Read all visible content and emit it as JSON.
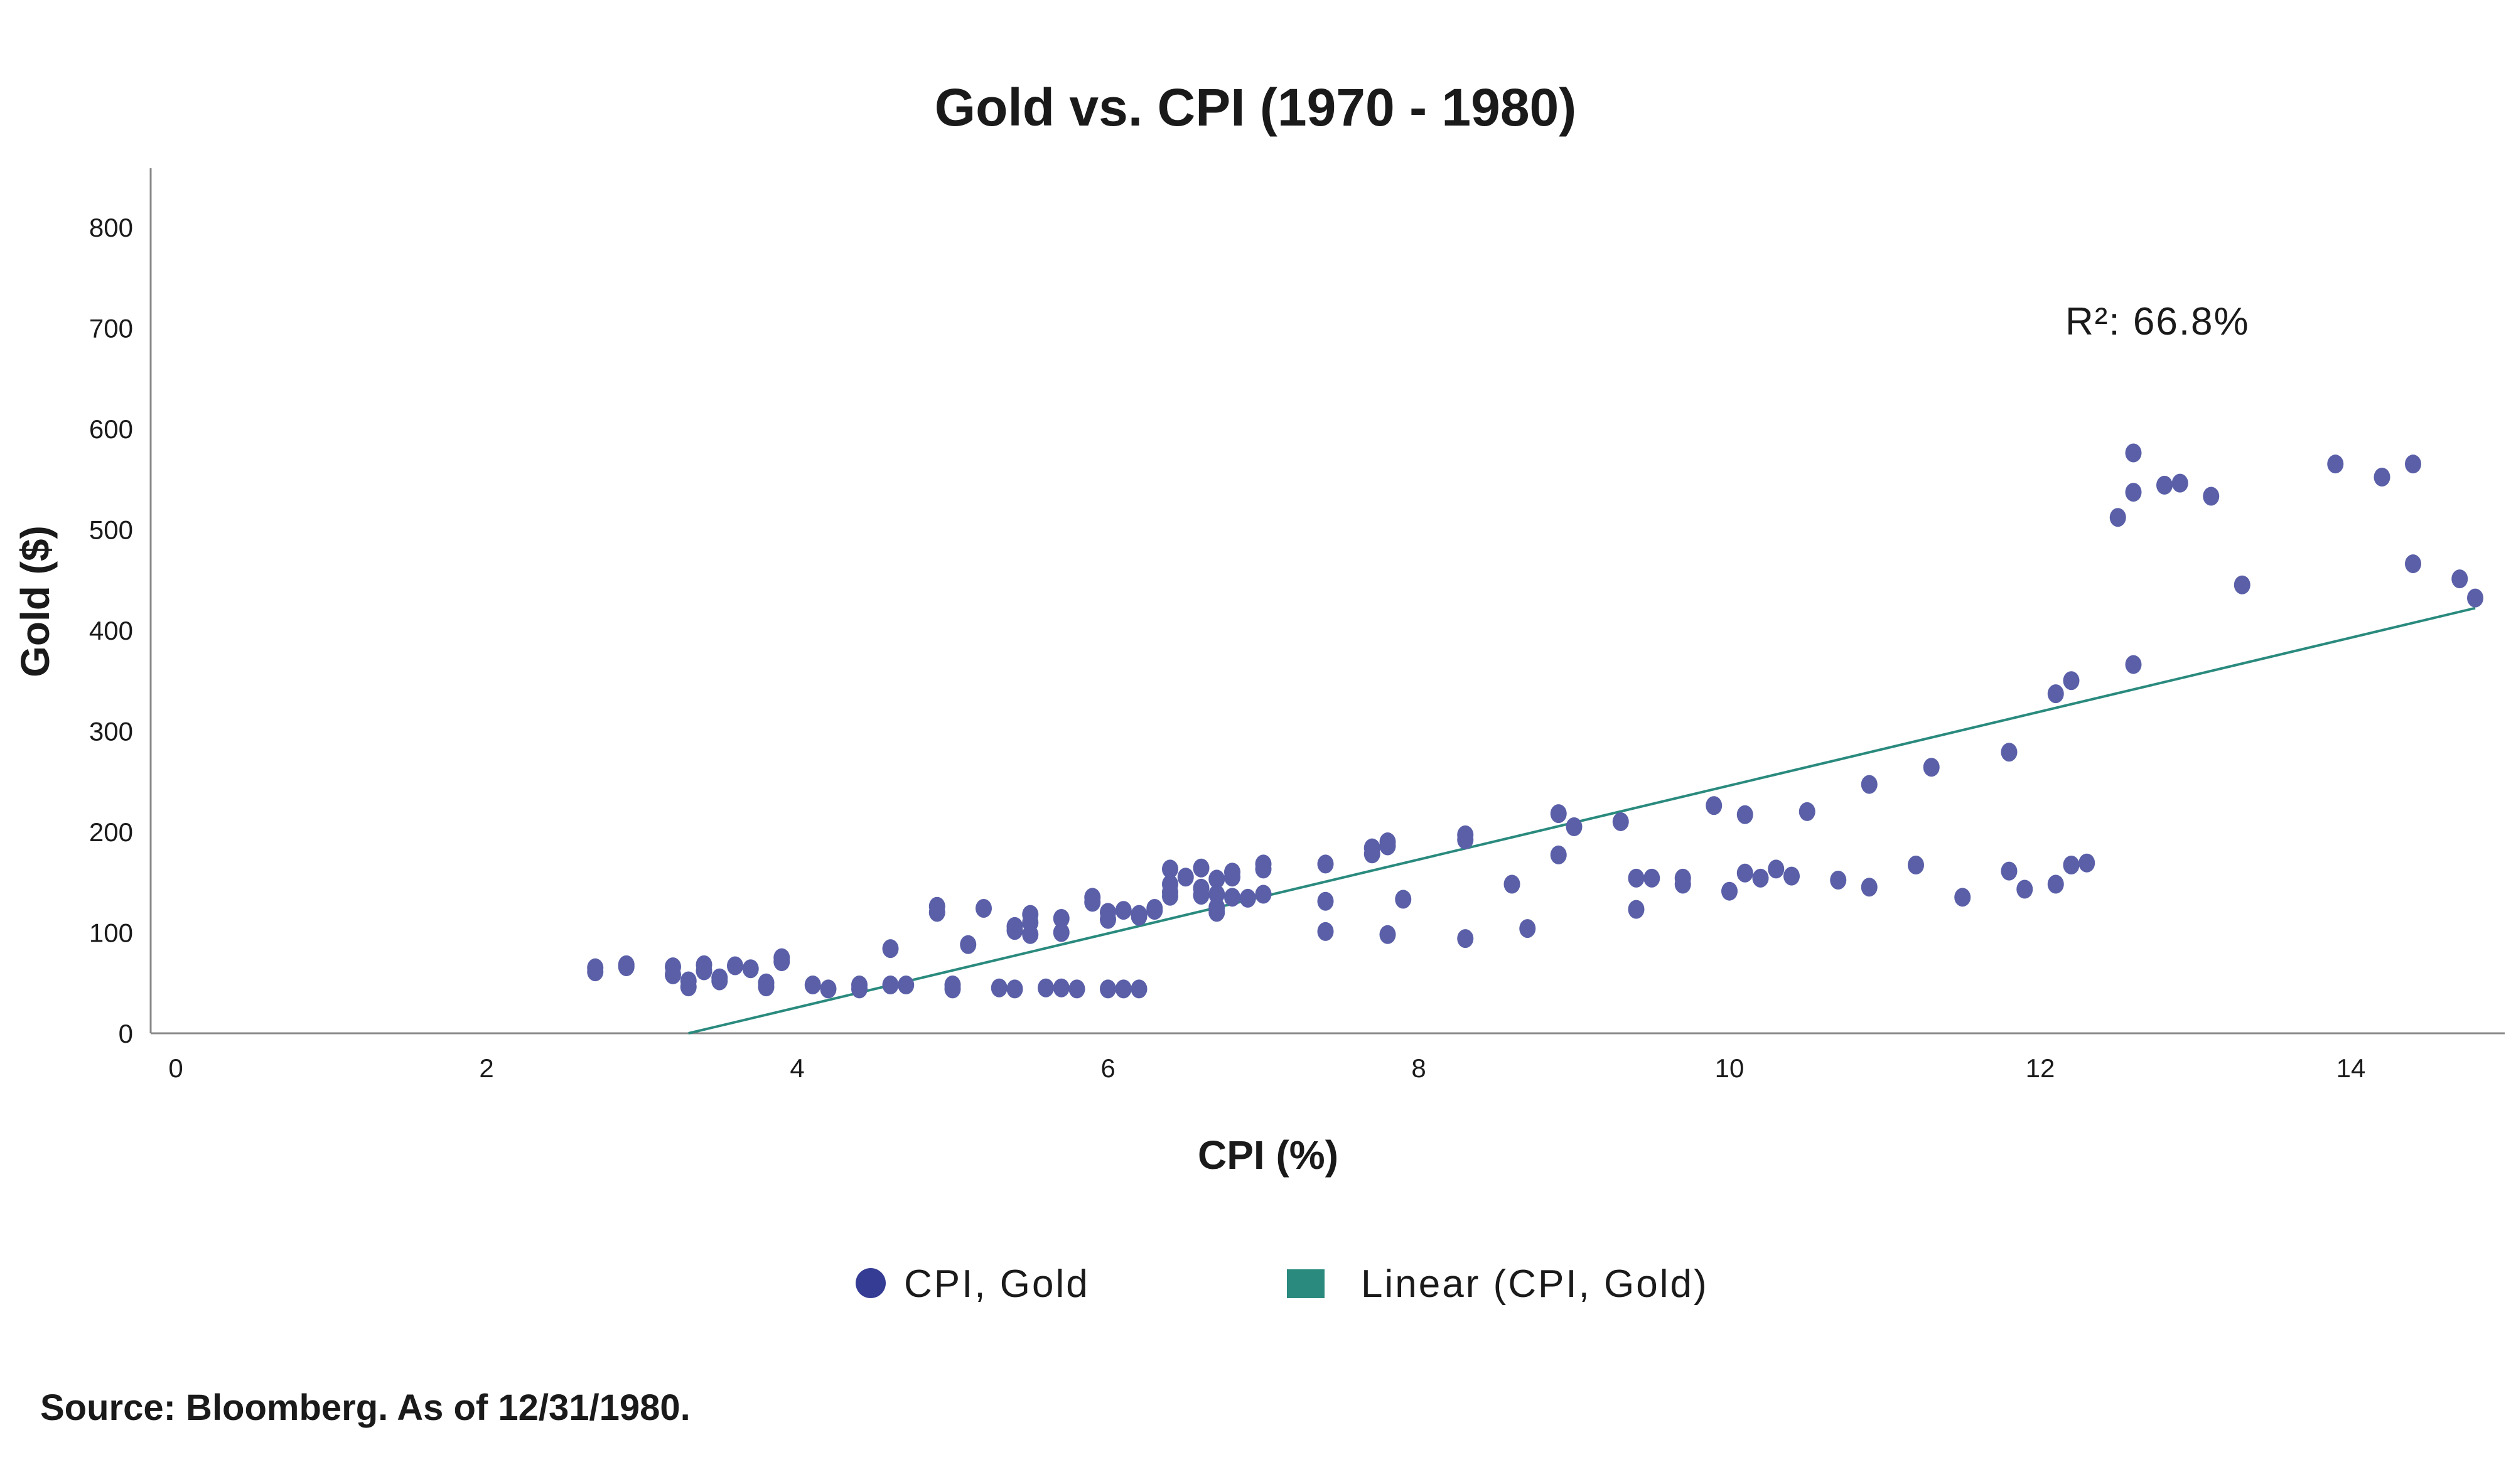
{
  "chart_data": {
    "type": "scatter",
    "title": "Gold vs. CPI (1970 - 1980)",
    "xlabel": "CPI (%)",
    "ylabel": "Gold ($)",
    "xlim": [
      0,
      15
    ],
    "ylim": [
      0,
      860
    ],
    "xticks": [
      0,
      2,
      4,
      6,
      8,
      10,
      12,
      14
    ],
    "yticks": [
      0,
      100,
      200,
      300,
      400,
      500,
      600,
      700,
      800
    ],
    "grid": false,
    "legend_position": "bottom",
    "colors": {
      "points": "#5a5fa8",
      "trendline": "#2a8a7e",
      "legend_marker": "#353c94",
      "axis": "#888888"
    },
    "series": [
      {
        "name": "CPI, Gold",
        "marker": "circle",
        "points": [
          [
            2.7,
            65
          ],
          [
            2.7,
            61
          ],
          [
            2.9,
            68
          ],
          [
            2.9,
            66
          ],
          [
            3.2,
            66
          ],
          [
            3.2,
            58
          ],
          [
            3.3,
            52
          ],
          [
            3.3,
            46
          ],
          [
            3.4,
            68
          ],
          [
            3.4,
            62
          ],
          [
            3.5,
            55
          ],
          [
            3.5,
            52
          ],
          [
            3.6,
            67
          ],
          [
            3.7,
            64
          ],
          [
            3.8,
            50
          ],
          [
            3.8,
            46
          ],
          [
            3.9,
            75
          ],
          [
            3.9,
            71
          ],
          [
            4.1,
            48
          ],
          [
            4.2,
            44
          ],
          [
            4.4,
            48
          ],
          [
            4.4,
            44
          ],
          [
            4.6,
            84
          ],
          [
            4.6,
            48
          ],
          [
            4.7,
            48
          ],
          [
            4.9,
            126
          ],
          [
            4.9,
            120
          ],
          [
            5.0,
            48
          ],
          [
            5.0,
            44
          ],
          [
            5.1,
            88
          ],
          [
            5.2,
            124
          ],
          [
            5.3,
            45
          ],
          [
            5.4,
            106
          ],
          [
            5.4,
            102
          ],
          [
            5.4,
            44
          ],
          [
            5.5,
            118
          ],
          [
            5.5,
            110
          ],
          [
            5.5,
            98
          ],
          [
            5.6,
            45
          ],
          [
            5.7,
            114
          ],
          [
            5.7,
            100
          ],
          [
            5.7,
            45
          ],
          [
            5.8,
            44
          ],
          [
            5.9,
            135
          ],
          [
            5.9,
            130
          ],
          [
            6.0,
            120
          ],
          [
            6.0,
            113
          ],
          [
            6.0,
            44
          ],
          [
            6.1,
            122
          ],
          [
            6.1,
            44
          ],
          [
            6.2,
            118
          ],
          [
            6.2,
            116
          ],
          [
            6.2,
            44
          ],
          [
            6.3,
            124
          ],
          [
            6.3,
            122
          ],
          [
            6.4,
            163
          ],
          [
            6.4,
            148
          ],
          [
            6.4,
            140
          ],
          [
            6.4,
            136
          ],
          [
            6.5,
            155
          ],
          [
            6.6,
            164
          ],
          [
            6.6,
            144
          ],
          [
            6.6,
            137
          ],
          [
            6.7,
            153
          ],
          [
            6.7,
            138
          ],
          [
            6.7,
            125
          ],
          [
            6.7,
            120
          ],
          [
            6.8,
            160
          ],
          [
            6.8,
            155
          ],
          [
            6.8,
            135
          ],
          [
            6.9,
            134
          ],
          [
            7.0,
            168
          ],
          [
            7.0,
            163
          ],
          [
            7.0,
            138
          ],
          [
            7.4,
            168
          ],
          [
            7.4,
            131
          ],
          [
            7.4,
            101
          ],
          [
            7.7,
            184
          ],
          [
            7.7,
            178
          ],
          [
            7.8,
            190
          ],
          [
            7.8,
            186
          ],
          [
            7.8,
            98
          ],
          [
            7.9,
            133
          ],
          [
            8.3,
            197
          ],
          [
            8.3,
            192
          ],
          [
            8.3,
            94
          ],
          [
            8.6,
            148
          ],
          [
            8.7,
            104
          ],
          [
            8.9,
            218
          ],
          [
            8.9,
            177
          ],
          [
            9.0,
            205
          ],
          [
            9.3,
            210
          ],
          [
            9.4,
            154
          ],
          [
            9.4,
            123
          ],
          [
            9.5,
            154
          ],
          [
            9.7,
            154
          ],
          [
            9.7,
            148
          ],
          [
            9.9,
            226
          ],
          [
            10.0,
            141
          ],
          [
            10.1,
            217
          ],
          [
            10.1,
            159
          ],
          [
            10.2,
            154
          ],
          [
            10.3,
            163
          ],
          [
            10.4,
            156
          ],
          [
            10.5,
            220
          ],
          [
            10.7,
            152
          ],
          [
            10.9,
            247
          ],
          [
            10.9,
            145
          ],
          [
            11.2,
            167
          ],
          [
            11.3,
            264
          ],
          [
            11.5,
            135
          ],
          [
            11.8,
            279
          ],
          [
            11.8,
            161
          ],
          [
            11.9,
            143
          ],
          [
            12.1,
            337
          ],
          [
            12.1,
            148
          ],
          [
            12.2,
            350
          ],
          [
            12.2,
            167
          ],
          [
            12.3,
            169
          ],
          [
            12.5,
            512
          ],
          [
            12.6,
            576
          ],
          [
            12.6,
            537
          ],
          [
            12.6,
            366
          ],
          [
            12.8,
            544
          ],
          [
            12.9,
            546
          ],
          [
            13.1,
            533
          ],
          [
            13.3,
            445
          ],
          [
            13.9,
            565
          ],
          [
            14.2,
            552
          ],
          [
            14.4,
            565
          ],
          [
            14.4,
            466
          ],
          [
            14.7,
            451
          ],
          [
            14.8,
            432
          ]
        ]
      },
      {
        "name": "Linear (CPI, Gold)",
        "marker": "line",
        "line": [
          [
            3.3,
            0
          ],
          [
            14.8,
            422
          ]
        ]
      }
    ],
    "annotations": [
      {
        "text": "R²: 66.8%"
      }
    ],
    "source": "Source: Bloomberg. As of 12/31/1980."
  }
}
